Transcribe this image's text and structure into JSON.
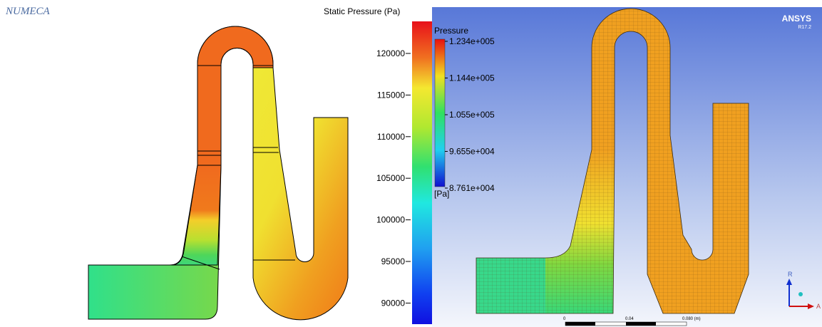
{
  "left_panel": {
    "logo": "NUMECA",
    "colorbar": {
      "title": "Static Pressure (Pa)",
      "ticks": [
        120000,
        115000,
        110000,
        105000,
        100000,
        95000,
        90000
      ]
    }
  },
  "right_panel": {
    "logo": "ANSYS",
    "version": "R17.2",
    "legend": {
      "title": "Pressure",
      "labels": [
        "1.234e+005",
        "1.144e+005",
        "1.055e+005",
        "9.655e+004",
        "8.761e+004"
      ],
      "unit": "[Pa]"
    },
    "scale_bar": [
      "0",
      "0.04",
      "0.080 (m)"
    ],
    "axes": [
      "R",
      "A"
    ]
  }
}
